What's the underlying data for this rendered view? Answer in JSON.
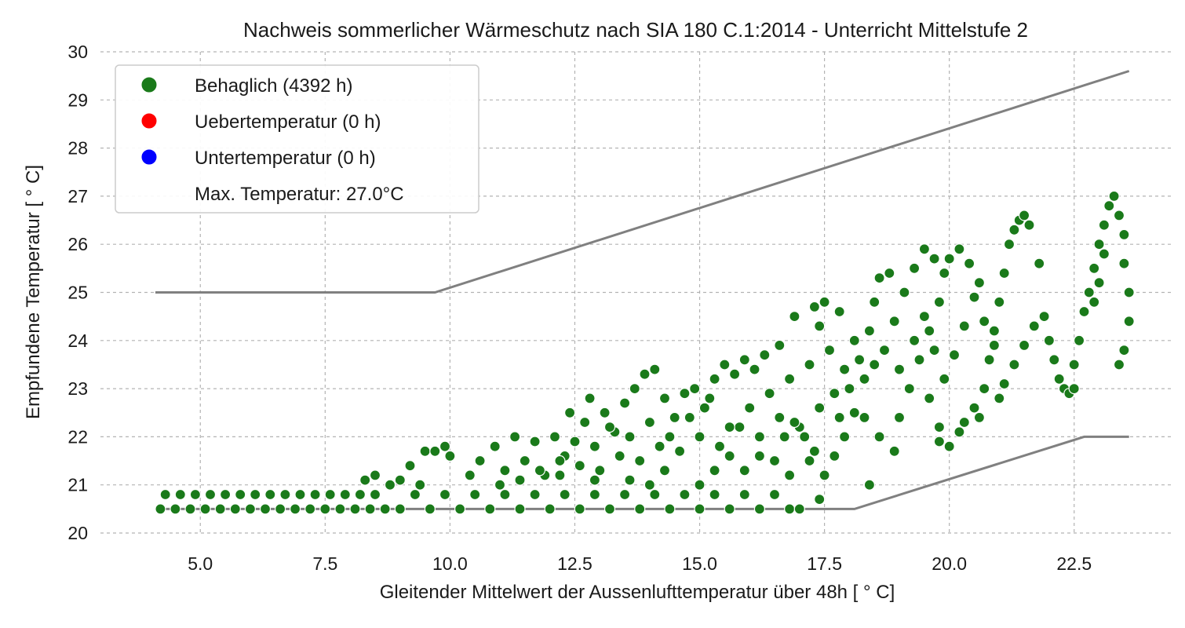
{
  "chart_data": {
    "type": "scatter",
    "title": "Nachweis sommerlicher Wärmeschutz nach SIA 180 C.1:2014 - Unterricht Mittelstufe 2",
    "xlabel": "Gleitender Mittelwert der Aussenlufttemperatur über 48h  [ ° C]",
    "ylabel": "Empfundene Temperatur  [ ° C]",
    "xlim": [
      3.0,
      24.5
    ],
    "ylim": [
      20,
      30
    ],
    "x_ticks": [
      "5.0",
      "7.5",
      "10.0",
      "12.5",
      "15.0",
      "17.5",
      "20.0",
      "22.5"
    ],
    "y_ticks": [
      "20",
      "21",
      "22",
      "23",
      "24",
      "25",
      "26",
      "27",
      "28",
      "29",
      "30"
    ],
    "grid": true,
    "legend_placement": "top-left",
    "legend": [
      {
        "label": "Behaglich (4392 h)",
        "color": "#1a7a1a"
      },
      {
        "label": "Uebertemperatur (0 h)",
        "color": "#ff0000"
      },
      {
        "label": "Untertemperatur (0 h)",
        "color": "#0000ff"
      },
      {
        "label": "Max. Temperatur: 27.0°C",
        "color": ""
      }
    ],
    "limit_lines": [
      {
        "x": [
          4.1,
          9.7,
          23.6
        ],
        "y": [
          25.0,
          25.0,
          29.6
        ]
      },
      {
        "x": [
          4.1,
          18.1,
          22.7,
          23.6
        ],
        "y": [
          20.5,
          20.5,
          22.0,
          22.0
        ]
      }
    ],
    "series": [
      {
        "name": "Behaglich (4392 h)",
        "color": "#1a7a1a",
        "points": [
          [
            4.2,
            20.5
          ],
          [
            4.3,
            20.8
          ],
          [
            4.5,
            20.5
          ],
          [
            4.6,
            20.8
          ],
          [
            4.8,
            20.5
          ],
          [
            4.9,
            20.8
          ],
          [
            5.1,
            20.5
          ],
          [
            5.2,
            20.8
          ],
          [
            5.4,
            20.5
          ],
          [
            5.5,
            20.8
          ],
          [
            5.7,
            20.5
          ],
          [
            5.8,
            20.8
          ],
          [
            6.0,
            20.5
          ],
          [
            6.1,
            20.8
          ],
          [
            6.3,
            20.5
          ],
          [
            6.4,
            20.8
          ],
          [
            6.6,
            20.5
          ],
          [
            6.7,
            20.8
          ],
          [
            6.9,
            20.5
          ],
          [
            7.0,
            20.8
          ],
          [
            7.2,
            20.5
          ],
          [
            7.3,
            20.8
          ],
          [
            7.5,
            20.5
          ],
          [
            7.6,
            20.8
          ],
          [
            7.8,
            20.5
          ],
          [
            7.9,
            20.8
          ],
          [
            8.1,
            20.5
          ],
          [
            8.2,
            20.8
          ],
          [
            8.4,
            20.5
          ],
          [
            8.5,
            20.8
          ],
          [
            8.3,
            21.1
          ],
          [
            8.5,
            21.2
          ],
          [
            8.8,
            21.0
          ],
          [
            9.0,
            21.1
          ],
          [
            9.2,
            21.4
          ],
          [
            9.4,
            21.0
          ],
          [
            9.5,
            21.7
          ],
          [
            9.7,
            21.7
          ],
          [
            9.9,
            21.8
          ],
          [
            10.0,
            21.6
          ],
          [
            8.7,
            20.5
          ],
          [
            9.0,
            20.5
          ],
          [
            9.3,
            20.8
          ],
          [
            9.6,
            20.5
          ],
          [
            9.9,
            20.8
          ],
          [
            10.2,
            20.5
          ],
          [
            10.5,
            20.8
          ],
          [
            10.8,
            20.5
          ],
          [
            11.1,
            20.8
          ],
          [
            11.4,
            20.5
          ],
          [
            11.7,
            20.8
          ],
          [
            12.0,
            20.5
          ],
          [
            12.3,
            20.8
          ],
          [
            12.6,
            20.5
          ],
          [
            12.9,
            20.8
          ],
          [
            13.2,
            20.5
          ],
          [
            13.5,
            20.8
          ],
          [
            13.8,
            20.5
          ],
          [
            14.1,
            20.8
          ],
          [
            14.4,
            20.5
          ],
          [
            14.7,
            20.8
          ],
          [
            15.0,
            20.5
          ],
          [
            15.3,
            20.8
          ],
          [
            15.6,
            20.5
          ],
          [
            15.9,
            20.8
          ],
          [
            16.2,
            20.5
          ],
          [
            16.5,
            20.8
          ],
          [
            16.8,
            20.5
          ],
          [
            17.0,
            20.5
          ],
          [
            17.4,
            20.7
          ],
          [
            10.4,
            21.2
          ],
          [
            10.6,
            21.5
          ],
          [
            10.9,
            21.8
          ],
          [
            11.1,
            21.3
          ],
          [
            11.3,
            22.0
          ],
          [
            11.5,
            21.5
          ],
          [
            11.7,
            21.9
          ],
          [
            11.9,
            21.2
          ],
          [
            12.1,
            22.0
          ],
          [
            12.3,
            21.6
          ],
          [
            12.5,
            21.9
          ],
          [
            12.7,
            22.3
          ],
          [
            12.9,
            21.8
          ],
          [
            13.1,
            22.5
          ],
          [
            13.3,
            22.1
          ],
          [
            13.5,
            22.7
          ],
          [
            13.7,
            23.0
          ],
          [
            13.9,
            23.3
          ],
          [
            14.1,
            23.4
          ],
          [
            14.3,
            22.8
          ],
          [
            14.5,
            22.4
          ],
          [
            14.7,
            22.9
          ],
          [
            14.9,
            23.0
          ],
          [
            15.1,
            22.6
          ],
          [
            15.3,
            23.2
          ],
          [
            15.5,
            23.5
          ],
          [
            15.7,
            23.3
          ],
          [
            15.9,
            23.6
          ],
          [
            16.1,
            23.4
          ],
          [
            16.3,
            23.7
          ],
          [
            11.0,
            21.0
          ],
          [
            11.4,
            21.1
          ],
          [
            11.8,
            21.3
          ],
          [
            12.2,
            21.2
          ],
          [
            12.6,
            21.4
          ],
          [
            13.0,
            21.3
          ],
          [
            13.4,
            21.6
          ],
          [
            13.8,
            21.5
          ],
          [
            14.2,
            21.8
          ],
          [
            14.6,
            21.7
          ],
          [
            15.0,
            22.0
          ],
          [
            15.4,
            21.8
          ],
          [
            15.8,
            22.2
          ],
          [
            16.2,
            22.0
          ],
          [
            16.6,
            22.4
          ],
          [
            17.0,
            22.2
          ],
          [
            17.4,
            22.6
          ],
          [
            17.8,
            22.4
          ],
          [
            16.8,
            21.2
          ],
          [
            17.2,
            21.5
          ],
          [
            12.4,
            22.5
          ],
          [
            12.8,
            22.8
          ],
          [
            13.2,
            22.2
          ],
          [
            13.6,
            22.0
          ],
          [
            14.0,
            22.3
          ],
          [
            14.4,
            22.0
          ],
          [
            14.8,
            22.4
          ],
          [
            15.2,
            22.8
          ],
          [
            15.6,
            22.2
          ],
          [
            16.0,
            22.6
          ],
          [
            16.4,
            22.9
          ],
          [
            16.8,
            23.2
          ],
          [
            17.2,
            23.5
          ],
          [
            17.6,
            23.8
          ],
          [
            17.4,
            24.3
          ],
          [
            17.8,
            24.6
          ],
          [
            17.5,
            24.8
          ],
          [
            16.6,
            23.9
          ],
          [
            16.9,
            24.5
          ],
          [
            17.3,
            24.7
          ],
          [
            18.0,
            23.0
          ],
          [
            18.2,
            23.6
          ],
          [
            18.4,
            24.2
          ],
          [
            18.5,
            24.8
          ],
          [
            18.6,
            25.3
          ],
          [
            18.8,
            25.4
          ],
          [
            18.3,
            22.4
          ],
          [
            18.6,
            22.0
          ],
          [
            18.9,
            21.7
          ],
          [
            18.4,
            21.0
          ],
          [
            19.0,
            22.4
          ],
          [
            19.2,
            23.0
          ],
          [
            19.4,
            23.6
          ],
          [
            19.6,
            24.2
          ],
          [
            19.8,
            24.8
          ],
          [
            19.9,
            25.4
          ],
          [
            20.0,
            25.7
          ],
          [
            20.2,
            25.9
          ],
          [
            20.4,
            25.6
          ],
          [
            20.6,
            25.2
          ],
          [
            19.1,
            25.0
          ],
          [
            19.3,
            25.5
          ],
          [
            19.5,
            25.9
          ],
          [
            19.7,
            25.7
          ],
          [
            19.6,
            22.8
          ],
          [
            19.8,
            22.2
          ],
          [
            20.0,
            21.8
          ],
          [
            20.3,
            22.3
          ],
          [
            20.5,
            22.6
          ],
          [
            20.7,
            23.0
          ],
          [
            20.8,
            23.6
          ],
          [
            20.9,
            24.2
          ],
          [
            21.0,
            24.8
          ],
          [
            21.1,
            25.4
          ],
          [
            21.2,
            26.0
          ],
          [
            21.3,
            26.3
          ],
          [
            21.4,
            26.5
          ],
          [
            21.5,
            26.6
          ],
          [
            21.6,
            26.4
          ],
          [
            21.8,
            25.6
          ],
          [
            21.1,
            23.1
          ],
          [
            21.3,
            23.5
          ],
          [
            21.5,
            23.9
          ],
          [
            21.7,
            24.3
          ],
          [
            21.9,
            24.5
          ],
          [
            22.0,
            24.0
          ],
          [
            22.1,
            23.6
          ],
          [
            22.2,
            23.2
          ],
          [
            22.3,
            23.0
          ],
          [
            22.4,
            22.9
          ],
          [
            22.5,
            23.0
          ],
          [
            22.5,
            23.5
          ],
          [
            22.6,
            24.0
          ],
          [
            22.7,
            24.6
          ],
          [
            22.8,
            25.0
          ],
          [
            22.9,
            25.5
          ],
          [
            23.0,
            26.0
          ],
          [
            23.1,
            26.4
          ],
          [
            23.2,
            26.8
          ],
          [
            23.3,
            27.0
          ],
          [
            23.4,
            26.6
          ],
          [
            23.5,
            26.2
          ],
          [
            23.5,
            25.6
          ],
          [
            23.6,
            25.0
          ],
          [
            23.6,
            24.4
          ],
          [
            23.5,
            23.8
          ],
          [
            23.4,
            23.5
          ],
          [
            23.0,
            25.2
          ],
          [
            22.9,
            24.8
          ],
          [
            23.1,
            25.8
          ],
          [
            16.5,
            21.5
          ],
          [
            16.7,
            22.0
          ],
          [
            16.9,
            22.3
          ],
          [
            17.1,
            22.0
          ],
          [
            17.3,
            21.7
          ],
          [
            17.5,
            21.2
          ],
          [
            17.7,
            21.6
          ],
          [
            17.9,
            22.0
          ],
          [
            18.1,
            22.5
          ],
          [
            18.3,
            23.2
          ],
          [
            15.0,
            21.0
          ],
          [
            15.3,
            21.3
          ],
          [
            15.6,
            21.6
          ],
          [
            15.9,
            21.3
          ],
          [
            16.2,
            21.6
          ],
          [
            14.0,
            21.0
          ],
          [
            14.3,
            21.3
          ],
          [
            13.6,
            21.1
          ],
          [
            12.9,
            21.1
          ],
          [
            12.2,
            21.5
          ],
          [
            19.0,
            23.4
          ],
          [
            19.3,
            24.0
          ],
          [
            19.5,
            24.5
          ],
          [
            19.7,
            23.8
          ],
          [
            19.9,
            23.2
          ],
          [
            20.1,
            23.7
          ],
          [
            20.3,
            24.3
          ],
          [
            20.5,
            24.9
          ],
          [
            20.7,
            24.4
          ],
          [
            20.9,
            23.9
          ],
          [
            21.0,
            22.8
          ],
          [
            20.6,
            22.4
          ],
          [
            20.2,
            22.1
          ],
          [
            19.8,
            21.9
          ],
          [
            18.7,
            23.8
          ],
          [
            18.9,
            24.4
          ],
          [
            18.1,
            24.0
          ],
          [
            17.9,
            23.4
          ],
          [
            17.7,
            22.9
          ],
          [
            18.5,
            23.5
          ]
        ]
      }
    ]
  }
}
